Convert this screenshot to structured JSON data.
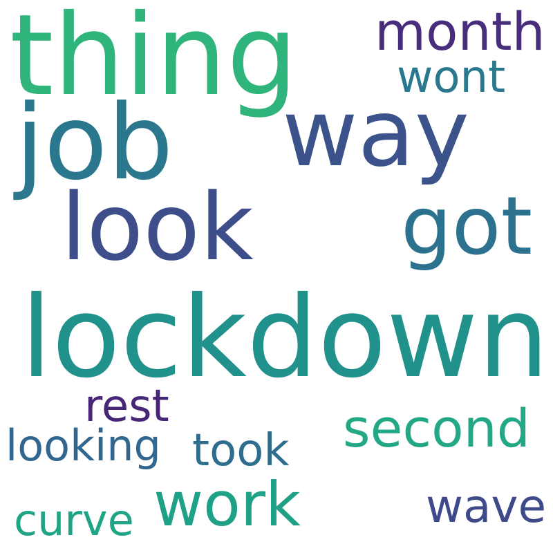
{
  "words": [
    {
      "text": "thing",
      "color": "#2fb47c"
    },
    {
      "text": "job",
      "color": "#2b788e"
    },
    {
      "text": "way",
      "color": "#3b528b"
    },
    {
      "text": "month",
      "color": "#472d7b"
    },
    {
      "text": "wont",
      "color": "#2a788e"
    },
    {
      "text": "look",
      "color": "#3d4e8a"
    },
    {
      "text": "got",
      "color": "#2c728e"
    },
    {
      "text": "lockdown",
      "color": "#21918c"
    },
    {
      "text": "rest",
      "color": "#482677"
    },
    {
      "text": "second",
      "color": "#22a884"
    },
    {
      "text": "looking",
      "color": "#31668e"
    },
    {
      "text": "took",
      "color": "#2e6d8e"
    },
    {
      "text": "work",
      "color": "#1fa187"
    },
    {
      "text": "wave",
      "color": "#3e4a89"
    },
    {
      "text": "curve",
      "color": "#20a486"
    }
  ]
}
